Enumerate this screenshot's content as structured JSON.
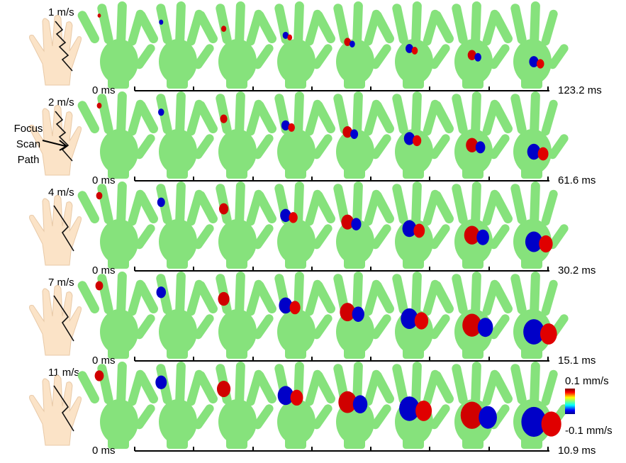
{
  "rows": [
    {
      "speed": "1 m/s",
      "start": "0 ms",
      "end": "123.2 ms"
    },
    {
      "speed": "2 m/s",
      "start": "0 ms",
      "end": "61.6 ms"
    },
    {
      "speed": "4 m/s",
      "start": "0 ms",
      "end": "30.2 ms"
    },
    {
      "speed": "7 m/s",
      "start": "0 ms",
      "end": "15.1 ms"
    },
    {
      "speed": "11 m/s",
      "start": "0 ms",
      "end": "10.9 ms"
    }
  ],
  "annotation": [
    "Focus",
    "Scan",
    "Path"
  ],
  "colorbar": {
    "max": "0.1 mm/s",
    "min": "-0.1 mm/s"
  }
}
